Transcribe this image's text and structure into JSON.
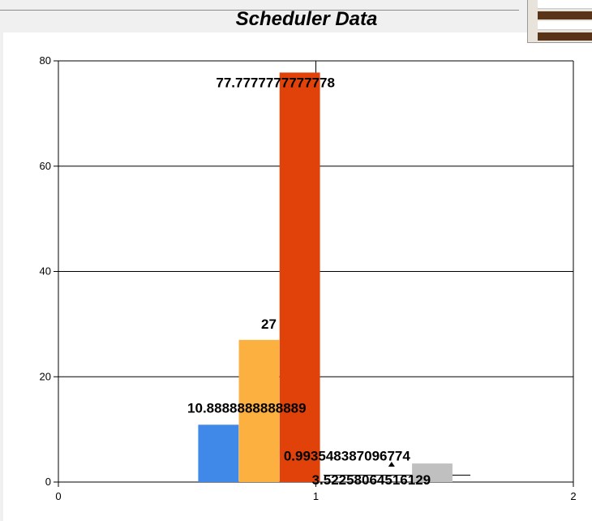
{
  "chart_data": {
    "type": "bar",
    "title": "Scheduler Data",
    "xlabel": "",
    "ylabel": "",
    "xlim": [
      0,
      2
    ],
    "ylim": [
      0,
      80
    ],
    "x_ticks": [
      "0",
      "1",
      "2"
    ],
    "y_ticks": [
      "0",
      "20",
      "40",
      "60",
      "80"
    ],
    "grid": true,
    "legend": "none",
    "series": [
      {
        "value": 10.8888888888889,
        "label": "10.8888888888889",
        "color": "#4189e8"
      },
      {
        "value": 27,
        "label": "27",
        "color": "#fbb040"
      },
      {
        "value": 77.7777777777778,
        "label": "77.7777777777778",
        "color": "#e0420a"
      },
      {
        "value": 0.993548387096774,
        "label": "0.993548387096774",
        "color": "#999999"
      },
      {
        "value": 3.52258064516129,
        "label": "3.52258064516129",
        "color": "#c0c0c0"
      }
    ]
  }
}
